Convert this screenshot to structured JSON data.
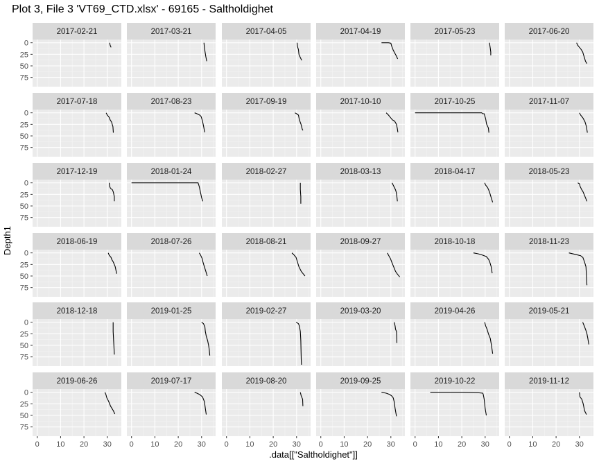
{
  "title": "Plot 3, File 3 'VT69_CTD.xlsx' - 69165  -  Saltholdighet",
  "chart_data": {
    "type": "line",
    "facet_layout": "6 columns x 6 rows",
    "xlabel": ".data[[\"Saltholdighet\"]]",
    "ylabel": "Depth1",
    "xlim": [
      -2,
      36
    ],
    "ylim": [
      95,
      -7
    ],
    "y_reversed": true,
    "x_ticks": [
      0,
      10,
      20,
      30
    ],
    "x_tick_labels": [
      "0",
      "10",
      "20",
      "30"
    ],
    "y_ticks": [
      0,
      25,
      50,
      75
    ],
    "y_tick_labels": [
      "0",
      "25",
      "50",
      "75"
    ],
    "grid": true,
    "series_color": "#000000",
    "panel_background": "#ebebeb",
    "strip_background": "#d9d9d9",
    "panels": [
      {
        "label": "2017-02-21",
        "x": [
          31.0,
          31.2,
          31.6
        ],
        "y": [
          0,
          5,
          10
        ]
      },
      {
        "label": "2017-03-21",
        "x": [
          31.0,
          31.2,
          31.5,
          31.8,
          32.2
        ],
        "y": [
          0,
          10,
          20,
          30,
          40
        ]
      },
      {
        "label": "2017-04-05",
        "x": [
          30.2,
          30.4,
          30.8,
          31.0,
          31.6,
          32.2
        ],
        "y": [
          0,
          8,
          15,
          25,
          32,
          38
        ]
      },
      {
        "label": "2017-04-19",
        "x": [
          26.0,
          29.0,
          30.0,
          30.4,
          31.0,
          31.6,
          32.3,
          32.9
        ],
        "y": [
          0,
          0,
          1,
          8,
          16,
          22,
          28,
          35
        ]
      },
      {
        "label": "2017-05-23",
        "x": [
          31.8,
          32.0,
          32.2,
          32.4,
          32.4
        ],
        "y": [
          0,
          5,
          12,
          20,
          27
        ]
      },
      {
        "label": "2017-06-20",
        "x": [
          28.8,
          29.2,
          30.0,
          30.8,
          31.4,
          32.0,
          32.6,
          33.2
        ],
        "y": [
          0,
          5,
          10,
          15,
          20,
          30,
          40,
          45
        ]
      },
      {
        "label": "2017-07-18",
        "x": [
          29.5,
          30.0,
          30.8,
          31.2,
          31.8,
          32.4,
          32.6
        ],
        "y": [
          0,
          5,
          10,
          15,
          20,
          30,
          43
        ]
      },
      {
        "label": "2017-08-23",
        "x": [
          27.0,
          28.0,
          29.2,
          29.8,
          30.4,
          30.9,
          31.3
        ],
        "y": [
          0,
          2,
          5,
          8,
          18,
          30,
          42
        ]
      },
      {
        "label": "2017-09-19",
        "x": [
          29.3,
          30.0,
          30.8,
          31.2,
          31.9,
          32.4,
          32.7
        ],
        "y": [
          0,
          2,
          5,
          15,
          25,
          35,
          38
        ]
      },
      {
        "label": "2017-10-10",
        "x": [
          28.0,
          29.0,
          29.8,
          30.6,
          31.6,
          32.4,
          32.8,
          33.0
        ],
        "y": [
          0,
          5,
          10,
          15,
          18,
          25,
          35,
          42
        ]
      },
      {
        "label": "2017-10-25",
        "x": [
          0.0,
          28.5,
          29.0,
          29.6,
          30.2,
          30.6,
          31.4,
          31.6
        ],
        "y": [
          0,
          0,
          2,
          2,
          13,
          24,
          33,
          43
        ]
      },
      {
        "label": "2017-11-07",
        "x": [
          30.0,
          30.5,
          31.0,
          31.6,
          32.4,
          33.0,
          33.4
        ],
        "y": [
          0,
          5,
          8,
          12,
          20,
          30,
          43
        ]
      },
      {
        "label": "2017-12-19",
        "x": [
          30.8,
          31.0,
          31.4,
          32.2,
          32.6,
          33.0,
          33.0
        ],
        "y": [
          0,
          8,
          12,
          15,
          20,
          30,
          40
        ]
      },
      {
        "label": "2018-01-24",
        "x": [
          0.0,
          27.5,
          28.5,
          29.0,
          29.5,
          30.0,
          30.5
        ],
        "y": [
          0,
          0,
          0,
          8,
          20,
          32,
          40
        ]
      },
      {
        "label": "2018-02-27",
        "x": [
          31.6,
          31.6,
          31.8,
          31.8
        ],
        "y": [
          0,
          14,
          30,
          45
        ]
      },
      {
        "label": "2018-03-13",
        "x": [
          30.5,
          31.0,
          31.5,
          32.0,
          32.3,
          32.6,
          32.8
        ],
        "y": [
          0,
          5,
          10,
          15,
          20,
          30,
          40
        ]
      },
      {
        "label": "2018-04-17",
        "x": [
          29.8,
          30.2,
          31.0,
          31.5,
          32.0,
          32.6,
          33.2
        ],
        "y": [
          0,
          5,
          10,
          15,
          22,
          32,
          42
        ]
      },
      {
        "label": "2018-05-23",
        "x": [
          29.3,
          30.0,
          30.3,
          31.0,
          31.6,
          32.4,
          33.2
        ],
        "y": [
          0,
          2,
          8,
          15,
          20,
          30,
          40
        ]
      },
      {
        "label": "2018-06-19",
        "x": [
          30.4,
          30.8,
          31.6,
          32.0,
          32.6,
          33.4,
          34.0
        ],
        "y": [
          0,
          5,
          10,
          15,
          20,
          30,
          45
        ]
      },
      {
        "label": "2018-07-26",
        "x": [
          29.0,
          29.6,
          30.2,
          30.6,
          31.2,
          31.8,
          32.4
        ],
        "y": [
          0,
          5,
          12,
          20,
          30,
          40,
          50
        ]
      },
      {
        "label": "2018-08-21",
        "x": [
          28.0,
          29.0,
          29.8,
          30.4,
          31.0,
          32.0,
          32.8,
          33.6
        ],
        "y": [
          0,
          5,
          10,
          20,
          30,
          40,
          45,
          50
        ]
      },
      {
        "label": "2018-09-27",
        "x": [
          28.5,
          29.0,
          29.8,
          30.4,
          31.2,
          32.0,
          32.8,
          33.8
        ],
        "y": [
          0,
          5,
          12,
          20,
          30,
          40,
          46,
          52
        ]
      },
      {
        "label": "2018-10-18",
        "x": [
          25.0,
          27.0,
          29.0,
          30.5,
          31.5,
          32.0,
          32.6,
          33.0
        ],
        "y": [
          0,
          2,
          5,
          8,
          14,
          20,
          30,
          44
        ]
      },
      {
        "label": "2018-11-23",
        "x": [
          25.5,
          28.0,
          30.5,
          31.5,
          32.2,
          32.8,
          33.0,
          33.2
        ],
        "y": [
          0,
          3,
          6,
          10,
          20,
          30,
          50,
          70
        ]
      },
      {
        "label": "2018-12-18",
        "x": [
          32.5,
          32.5,
          32.7,
          32.9,
          33.0
        ],
        "y": [
          0,
          20,
          40,
          60,
          70
        ]
      },
      {
        "label": "2019-01-25",
        "x": [
          30.0,
          30.8,
          31.4,
          31.6,
          32.0,
          32.6,
          33.0,
          33.3,
          33.5
        ],
        "y": [
          0,
          3,
          10,
          20,
          30,
          40,
          50,
          60,
          72
        ]
      },
      {
        "label": "2019-02-27",
        "x": [
          29.8,
          30.8,
          31.2,
          31.6,
          31.8,
          31.9,
          32.0,
          32.1
        ],
        "y": [
          0,
          3,
          8,
          20,
          40,
          60,
          80,
          92
        ]
      },
      {
        "label": "2019-03-20",
        "x": [
          31.4,
          31.8,
          32.0,
          32.4,
          32.5,
          32.6
        ],
        "y": [
          0,
          8,
          15,
          20,
          30,
          45
        ]
      },
      {
        "label": "2019-04-26",
        "x": [
          29.8,
          30.2,
          30.8,
          31.4,
          32.2,
          32.7,
          33.2
        ],
        "y": [
          0,
          8,
          15,
          25,
          35,
          50,
          68
        ]
      },
      {
        "label": "2019-05-21",
        "x": [
          31.4,
          31.8,
          32.2,
          32.8,
          33.2,
          33.6,
          34.0
        ],
        "y": [
          0,
          5,
          10,
          18,
          25,
          35,
          48
        ]
      },
      {
        "label": "2019-06-26",
        "x": [
          29.0,
          29.4,
          29.8,
          30.6,
          31.4,
          32.6,
          33.2
        ],
        "y": [
          0,
          5,
          12,
          20,
          30,
          40,
          47
        ]
      },
      {
        "label": "2019-07-17",
        "x": [
          27.0,
          28.0,
          29.2,
          30.4,
          31.2,
          31.6,
          32.0
        ],
        "y": [
          0,
          2,
          5,
          10,
          20,
          35,
          48
        ]
      },
      {
        "label": "2019-08-20",
        "x": [
          31.6,
          32.0,
          32.6,
          32.7
        ],
        "y": [
          0,
          8,
          15,
          30
        ]
      },
      {
        "label": "2019-09-25",
        "x": [
          26.0,
          28.0,
          29.6,
          30.4,
          31.0,
          31.4,
          31.8,
          32.4
        ],
        "y": [
          0,
          2,
          5,
          8,
          12,
          20,
          35,
          52
        ]
      },
      {
        "label": "2019-10-22",
        "x": [
          6.5,
          20.0,
          27.0,
          29.0,
          29.2,
          29.6,
          30.0,
          30.5
        ],
        "y": [
          0,
          0,
          1,
          2,
          5,
          15,
          35,
          50
        ]
      },
      {
        "label": "2019-11-12",
        "x": [
          30.0,
          30.2,
          31.0,
          31.6,
          32.2,
          33.0
        ],
        "y": [
          0,
          10,
          15,
          25,
          40,
          48
        ]
      }
    ]
  }
}
